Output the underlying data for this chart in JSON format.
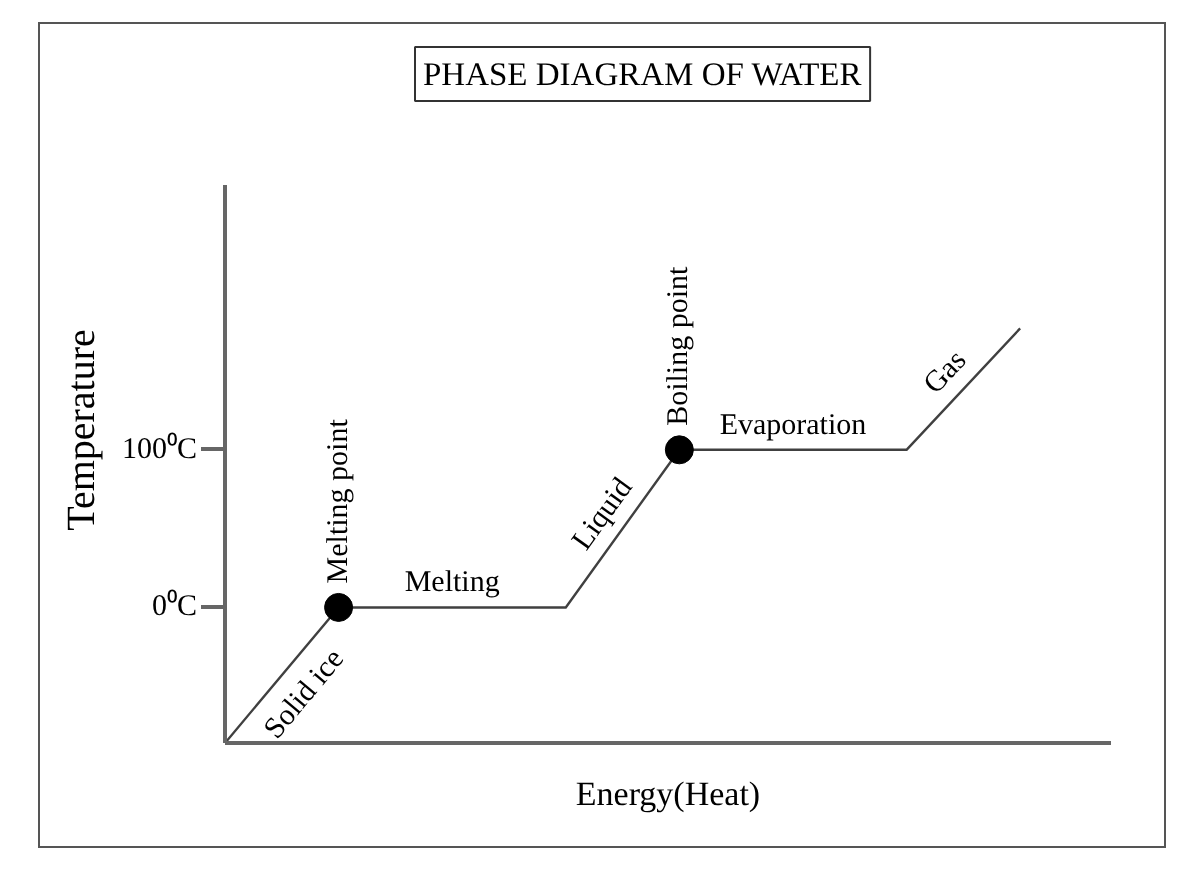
{
  "chart_data": {
    "type": "line",
    "title": "PHASE DIAGRAM OF WATER",
    "xlabel": "Energy(Heat)",
    "ylabel": "Temperature",
    "categories": [
      null,
      null,
      null,
      null,
      null,
      null,
      null,
      null
    ],
    "series": [
      {
        "type": "line",
        "color": "#404040",
        "values": [
          -86,
          0,
          0,
          0,
          100,
          100,
          100,
          177
        ]
      },
      {
        "type": "scatter",
        "color": "#000000",
        "marker": "circle",
        "values": [
          null,
          0,
          null,
          null,
          100,
          null,
          null,
          null
        ]
      }
    ],
    "ylim": [
      -86,
      268
    ],
    "yticks": [
      {
        "value": 0,
        "label": "0⁰C"
      },
      {
        "value": 100,
        "label": "100⁰C"
      }
    ],
    "tick_labels": "y",
    "annotations": [
      "Solid ice",
      "Melting point",
      "Melting",
      "Liquid",
      "Boiling point",
      "Evaporation",
      "Gas"
    ]
  }
}
